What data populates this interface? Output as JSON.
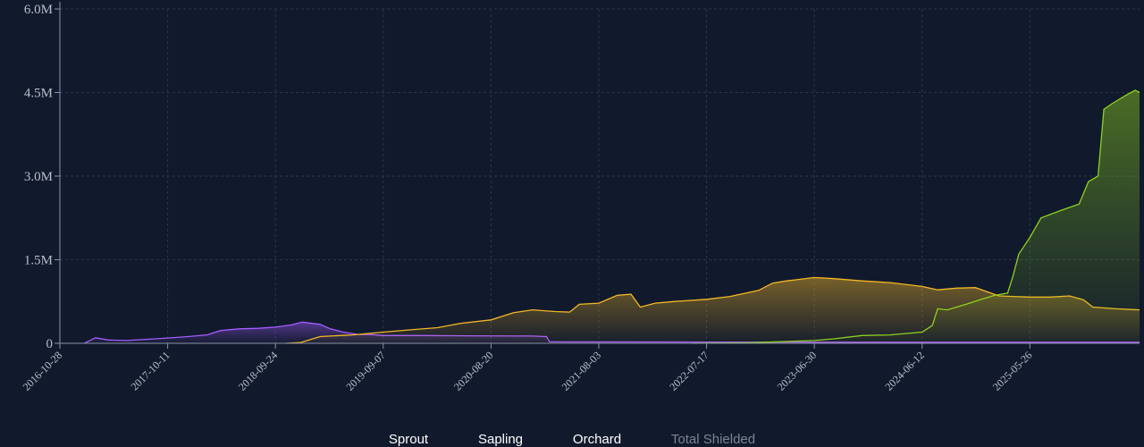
{
  "chart_data": {
    "type": "area",
    "title": "",
    "xlabel": "",
    "ylabel": "",
    "ylim": [
      0,
      6000000
    ],
    "y_ticks": [
      {
        "value": 0,
        "label": "0"
      },
      {
        "value": 1500000,
        "label": "1.5M"
      },
      {
        "value": 3000000,
        "label": "3.0M"
      },
      {
        "value": 4500000,
        "label": "4.5M"
      },
      {
        "value": 6000000,
        "label": "6.0M"
      }
    ],
    "x_range": [
      "2016-10-28",
      "2026-05-15"
    ],
    "x_ticks": [
      "2016-10-28",
      "2017-10-11",
      "2018-09-24",
      "2019-09-07",
      "2020-08-20",
      "2021-08-03",
      "2022-07-17",
      "2023-06-30",
      "2024-06-12",
      "2025-05-26"
    ],
    "grid": true,
    "legend_position": "bottom-center",
    "series": [
      {
        "name": "Sprout",
        "color": "#a35cff",
        "visible": true,
        "points": [
          [
            "2017-01-15",
            0
          ],
          [
            "2017-02-20",
            100000
          ],
          [
            "2017-04-01",
            60000
          ],
          [
            "2017-06-01",
            50000
          ],
          [
            "2017-08-01",
            70000
          ],
          [
            "2017-10-11",
            95000
          ],
          [
            "2017-12-15",
            120000
          ],
          [
            "2018-02-15",
            150000
          ],
          [
            "2018-04-01",
            230000
          ],
          [
            "2018-06-01",
            260000
          ],
          [
            "2018-08-01",
            270000
          ],
          [
            "2018-09-24",
            290000
          ],
          [
            "2018-11-15",
            330000
          ],
          [
            "2018-12-20",
            380000
          ],
          [
            "2019-02-15",
            340000
          ],
          [
            "2019-03-20",
            260000
          ],
          [
            "2019-05-01",
            200000
          ],
          [
            "2019-06-15",
            160000
          ],
          [
            "2019-08-01",
            155000
          ],
          [
            "2019-09-07",
            140000
          ],
          [
            "2020-01-01",
            140000
          ],
          [
            "2020-06-01",
            135000
          ],
          [
            "2021-01-01",
            130000
          ],
          [
            "2021-02-15",
            120000
          ],
          [
            "2021-02-25",
            25000
          ],
          [
            "2022-07-17",
            22000
          ],
          [
            "2023-06-30",
            20000
          ],
          [
            "2024-06-12",
            20000
          ],
          [
            "2025-05-26",
            20000
          ],
          [
            "2026-05-15",
            20000
          ]
        ]
      },
      {
        "name": "Sapling",
        "color": "#f4b726",
        "visible": true,
        "points": [
          [
            "2018-10-28",
            0
          ],
          [
            "2018-12-15",
            15000
          ],
          [
            "2019-02-15",
            120000
          ],
          [
            "2019-06-01",
            150000
          ],
          [
            "2019-09-07",
            200000
          ],
          [
            "2019-12-01",
            240000
          ],
          [
            "2020-03-01",
            280000
          ],
          [
            "2020-05-15",
            360000
          ],
          [
            "2020-08-20",
            420000
          ],
          [
            "2020-11-01",
            550000
          ],
          [
            "2021-01-01",
            600000
          ],
          [
            "2021-03-15",
            570000
          ],
          [
            "2021-05-01",
            560000
          ],
          [
            "2021-06-01",
            700000
          ],
          [
            "2021-08-03",
            720000
          ],
          [
            "2021-10-01",
            860000
          ],
          [
            "2021-11-15",
            880000
          ],
          [
            "2021-12-15",
            650000
          ],
          [
            "2022-02-01",
            720000
          ],
          [
            "2022-04-01",
            750000
          ],
          [
            "2022-07-17",
            790000
          ],
          [
            "2022-10-01",
            840000
          ],
          [
            "2023-01-01",
            950000
          ],
          [
            "2023-02-15",
            1080000
          ],
          [
            "2023-04-01",
            1120000
          ],
          [
            "2023-06-30",
            1180000
          ],
          [
            "2023-09-01",
            1160000
          ],
          [
            "2023-12-01",
            1120000
          ],
          [
            "2024-03-01",
            1090000
          ],
          [
            "2024-06-12",
            1020000
          ],
          [
            "2024-08-01",
            960000
          ],
          [
            "2024-10-01",
            990000
          ],
          [
            "2024-12-01",
            1000000
          ],
          [
            "2025-02-15",
            850000
          ],
          [
            "2025-05-26",
            830000
          ],
          [
            "2025-08-01",
            830000
          ],
          [
            "2025-10-01",
            850000
          ],
          [
            "2025-11-15",
            780000
          ],
          [
            "2025-12-15",
            650000
          ],
          [
            "2026-03-01",
            620000
          ],
          [
            "2026-05-15",
            600000
          ]
        ]
      },
      {
        "name": "Orchard",
        "color": "#8fd11e",
        "visible": true,
        "points": [
          [
            "2022-06-01",
            0
          ],
          [
            "2022-12-01",
            10000
          ],
          [
            "2023-06-30",
            50000
          ],
          [
            "2023-09-01",
            80000
          ],
          [
            "2023-12-01",
            140000
          ],
          [
            "2024-03-01",
            150000
          ],
          [
            "2024-06-12",
            200000
          ],
          [
            "2024-07-15",
            320000
          ],
          [
            "2024-08-01",
            620000
          ],
          [
            "2024-09-01",
            600000
          ],
          [
            "2024-11-01",
            700000
          ],
          [
            "2024-12-15",
            780000
          ],
          [
            "2025-02-01",
            860000
          ],
          [
            "2025-03-15",
            900000
          ],
          [
            "2025-04-01",
            1200000
          ],
          [
            "2025-04-20",
            1600000
          ],
          [
            "2025-05-26",
            1900000
          ],
          [
            "2025-07-01",
            2250000
          ],
          [
            "2025-09-01",
            2380000
          ],
          [
            "2025-11-01",
            2500000
          ],
          [
            "2025-12-01",
            2900000
          ],
          [
            "2026-01-01",
            3000000
          ],
          [
            "2026-01-20",
            4200000
          ],
          [
            "2026-02-15",
            4300000
          ],
          [
            "2026-04-01",
            4450000
          ],
          [
            "2026-05-01",
            4540000
          ],
          [
            "2026-05-15",
            4500000
          ]
        ]
      },
      {
        "name": "Total Shielded",
        "color": "#7c8392",
        "visible": false,
        "points": []
      }
    ]
  }
}
